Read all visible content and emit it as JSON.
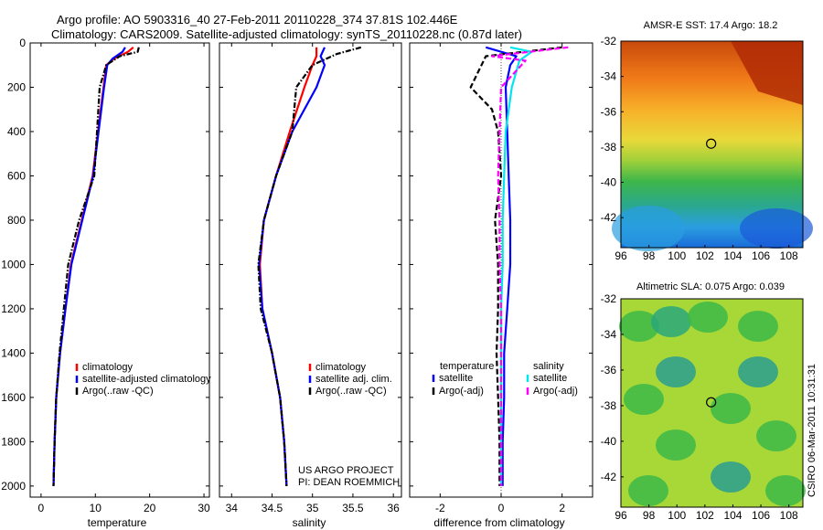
{
  "title": {
    "line1": "Argo profile: AO 5903316_40 27-Feb-2011 20110228_374 37.81S 102.446E",
    "line2": "Climatology: CARS2009. Satellite-adjusted climatology: synTS_20110228.nc (0.87d later)"
  },
  "depth_ticks": [
    0,
    200,
    400,
    600,
    800,
    1000,
    1200,
    1400,
    1600,
    1800,
    2000
  ],
  "depth_range": [
    0,
    2050
  ],
  "chart_data": [
    {
      "type": "line",
      "xlabel": "temperature",
      "xlim": [
        -2,
        31
      ],
      "xticks": [
        0,
        10,
        20,
        30
      ],
      "ylim": [
        0,
        2050
      ],
      "legend": [
        "climatology",
        "satellite-adjusted climatology",
        "Argo(..raw -QC)"
      ],
      "series": [
        {
          "name": "climatology",
          "color": "#ff0000",
          "dash": "solid",
          "x": [
            17.0,
            16.0,
            13.5,
            12.0,
            11.5,
            10.5,
            9.5,
            7.5,
            5.5,
            4.5,
            3.5,
            2.8,
            2.5,
            2.3
          ],
          "y": [
            20,
            40,
            70,
            100,
            200,
            400,
            600,
            800,
            1000,
            1200,
            1400,
            1600,
            1800,
            2000
          ]
        },
        {
          "name": "satellite-adjusted climatology",
          "color": "#0000ff",
          "dash": "solid",
          "x": [
            15.5,
            15.0,
            13.2,
            12.2,
            11.6,
            10.6,
            9.6,
            7.6,
            5.6,
            4.5,
            3.5,
            2.8,
            2.5,
            2.3
          ],
          "y": [
            20,
            40,
            70,
            100,
            200,
            400,
            600,
            800,
            1000,
            1200,
            1400,
            1600,
            1800,
            2000
          ]
        },
        {
          "name": "Argo(..raw -QC)",
          "color": "#000000",
          "dash": "dashdot",
          "x": [
            18.0,
            17.8,
            14.5,
            12.0,
            10.8,
            10.3,
            9.8,
            7.0,
            5.0,
            4.2,
            3.4,
            2.8,
            2.5,
            2.3
          ],
          "y": [
            20,
            40,
            60,
            100,
            200,
            400,
            600,
            800,
            1000,
            1200,
            1400,
            1600,
            1800,
            2000
          ]
        }
      ]
    },
    {
      "type": "line",
      "xlabel": "salinity",
      "xlim": [
        33.85,
        36.1
      ],
      "xticks": [
        34,
        34.5,
        35,
        35.5,
        36
      ],
      "ylim": [
        0,
        2050
      ],
      "legend": [
        "climatology",
        "satellite adj. clim.",
        "Argo(..raw -QC)"
      ],
      "series": [
        {
          "name": "climatology",
          "color": "#ff0000",
          "dash": "solid",
          "x": [
            35.05,
            35.05,
            35.0,
            34.9,
            34.72,
            34.55,
            34.4,
            34.35,
            34.38,
            34.5,
            34.6,
            34.65,
            34.68
          ],
          "y": [
            20,
            60,
            100,
            200,
            400,
            600,
            800,
            1000,
            1200,
            1400,
            1600,
            1800,
            2000
          ]
        },
        {
          "name": "satellite adj. clim.",
          "color": "#0000ff",
          "dash": "solid",
          "x": [
            35.15,
            35.1,
            35.15,
            35.05,
            34.75,
            34.55,
            34.4,
            34.34,
            34.38,
            34.5,
            34.6,
            34.65,
            34.68
          ],
          "y": [
            20,
            60,
            100,
            200,
            400,
            600,
            800,
            1000,
            1200,
            1400,
            1600,
            1800,
            2000
          ]
        },
        {
          "name": "Argo(..raw -QC)",
          "color": "#000000",
          "dash": "dashdot",
          "x": [
            35.6,
            35.3,
            35.0,
            34.8,
            34.75,
            34.55,
            34.4,
            34.33,
            34.36,
            34.5,
            34.6,
            34.65,
            34.68
          ],
          "y": [
            20,
            50,
            100,
            200,
            400,
            600,
            800,
            1000,
            1200,
            1400,
            1600,
            1800,
            2000
          ]
        }
      ]
    },
    {
      "type": "line",
      "xlabel": "difference from climatology",
      "xlim": [
        -3,
        3
      ],
      "xticks": [
        -2,
        0,
        2
      ],
      "ylim": [
        0,
        2050
      ],
      "legend_headers": [
        "temperature",
        "salinity"
      ],
      "legend": [
        "satellite",
        "Argo(-adj)",
        "satellite",
        "Argo(-adj)"
      ],
      "series": [
        {
          "name": "temperature satellite",
          "color": "#0000ff",
          "dash": "solid",
          "x": [
            -0.5,
            0.5,
            0.3,
            0.15,
            0.2,
            0.25,
            0.3,
            0.3,
            0.2,
            0.1,
            0.1,
            0.05,
            0.05
          ],
          "y": [
            20,
            60,
            100,
            200,
            400,
            600,
            800,
            1000,
            1200,
            1400,
            1600,
            1800,
            2000
          ]
        },
        {
          "name": "temperature Argo(-adj)",
          "color": "#000000",
          "dash": "dashed",
          "x": [
            2.0,
            -0.5,
            -1.0,
            -0.3,
            -0.1,
            0.0,
            -0.2,
            -0.1,
            -0.1,
            -0.15,
            -0.1,
            -0.05,
            -0.05
          ],
          "y": [
            20,
            60,
            200,
            300,
            400,
            600,
            800,
            1000,
            1200,
            1400,
            1600,
            1800,
            2000
          ]
        },
        {
          "name": "salinity satellite",
          "color": "#00e5ee",
          "dash": "solid",
          "x": [
            0.3,
            1.0,
            0.6,
            0.35,
            0.15,
            0.1,
            0.05,
            0.05,
            0.0,
            0.0,
            0.0,
            0.0,
            0.0
          ],
          "y": [
            20,
            40,
            80,
            200,
            400,
            600,
            800,
            1000,
            1200,
            1400,
            1600,
            1800,
            2000
          ]
        },
        {
          "name": "salinity Argo(-adj)",
          "color": "#ff00ff",
          "dash": "dashed",
          "x": [
            2.2,
            -0.3,
            0.8,
            0.0,
            -0.05,
            -0.1,
            -0.05,
            -0.05,
            0.0,
            0.0,
            0.0,
            0.0,
            0.0
          ],
          "y": [
            20,
            60,
            80,
            200,
            400,
            600,
            800,
            1000,
            1200,
            1400,
            1600,
            1800,
            2000
          ]
        }
      ]
    },
    {
      "type": "heatmap",
      "title": "AMSR-E SST: 17.4 Argo: 18.2",
      "xlim": [
        96,
        109
      ],
      "ylim": [
        -43.7,
        -32
      ],
      "xticks": [
        96,
        98,
        100,
        102,
        104,
        106,
        108
      ],
      "yticks": [
        -32,
        -34,
        -36,
        -38,
        -40,
        -42
      ],
      "marker": {
        "lon": 102.446,
        "lat": -37.81
      }
    },
    {
      "type": "heatmap",
      "title": "Altimetric SLA: 0.075 Argo: 0.039",
      "xlim": [
        96,
        109
      ],
      "ylim": [
        -43.7,
        -32
      ],
      "xticks": [
        96,
        98,
        100,
        102,
        104,
        106,
        108
      ],
      "yticks": [
        -32,
        -34,
        -36,
        -38,
        -40,
        -42
      ],
      "marker": {
        "lon": 102.446,
        "lat": -37.81
      }
    }
  ],
  "credits": {
    "line1": "US ARGO PROJECT",
    "line2": "PI: DEAN ROEMMICH"
  },
  "side_stamp": "CSIRO 06-Mar-2011 10:31:31"
}
